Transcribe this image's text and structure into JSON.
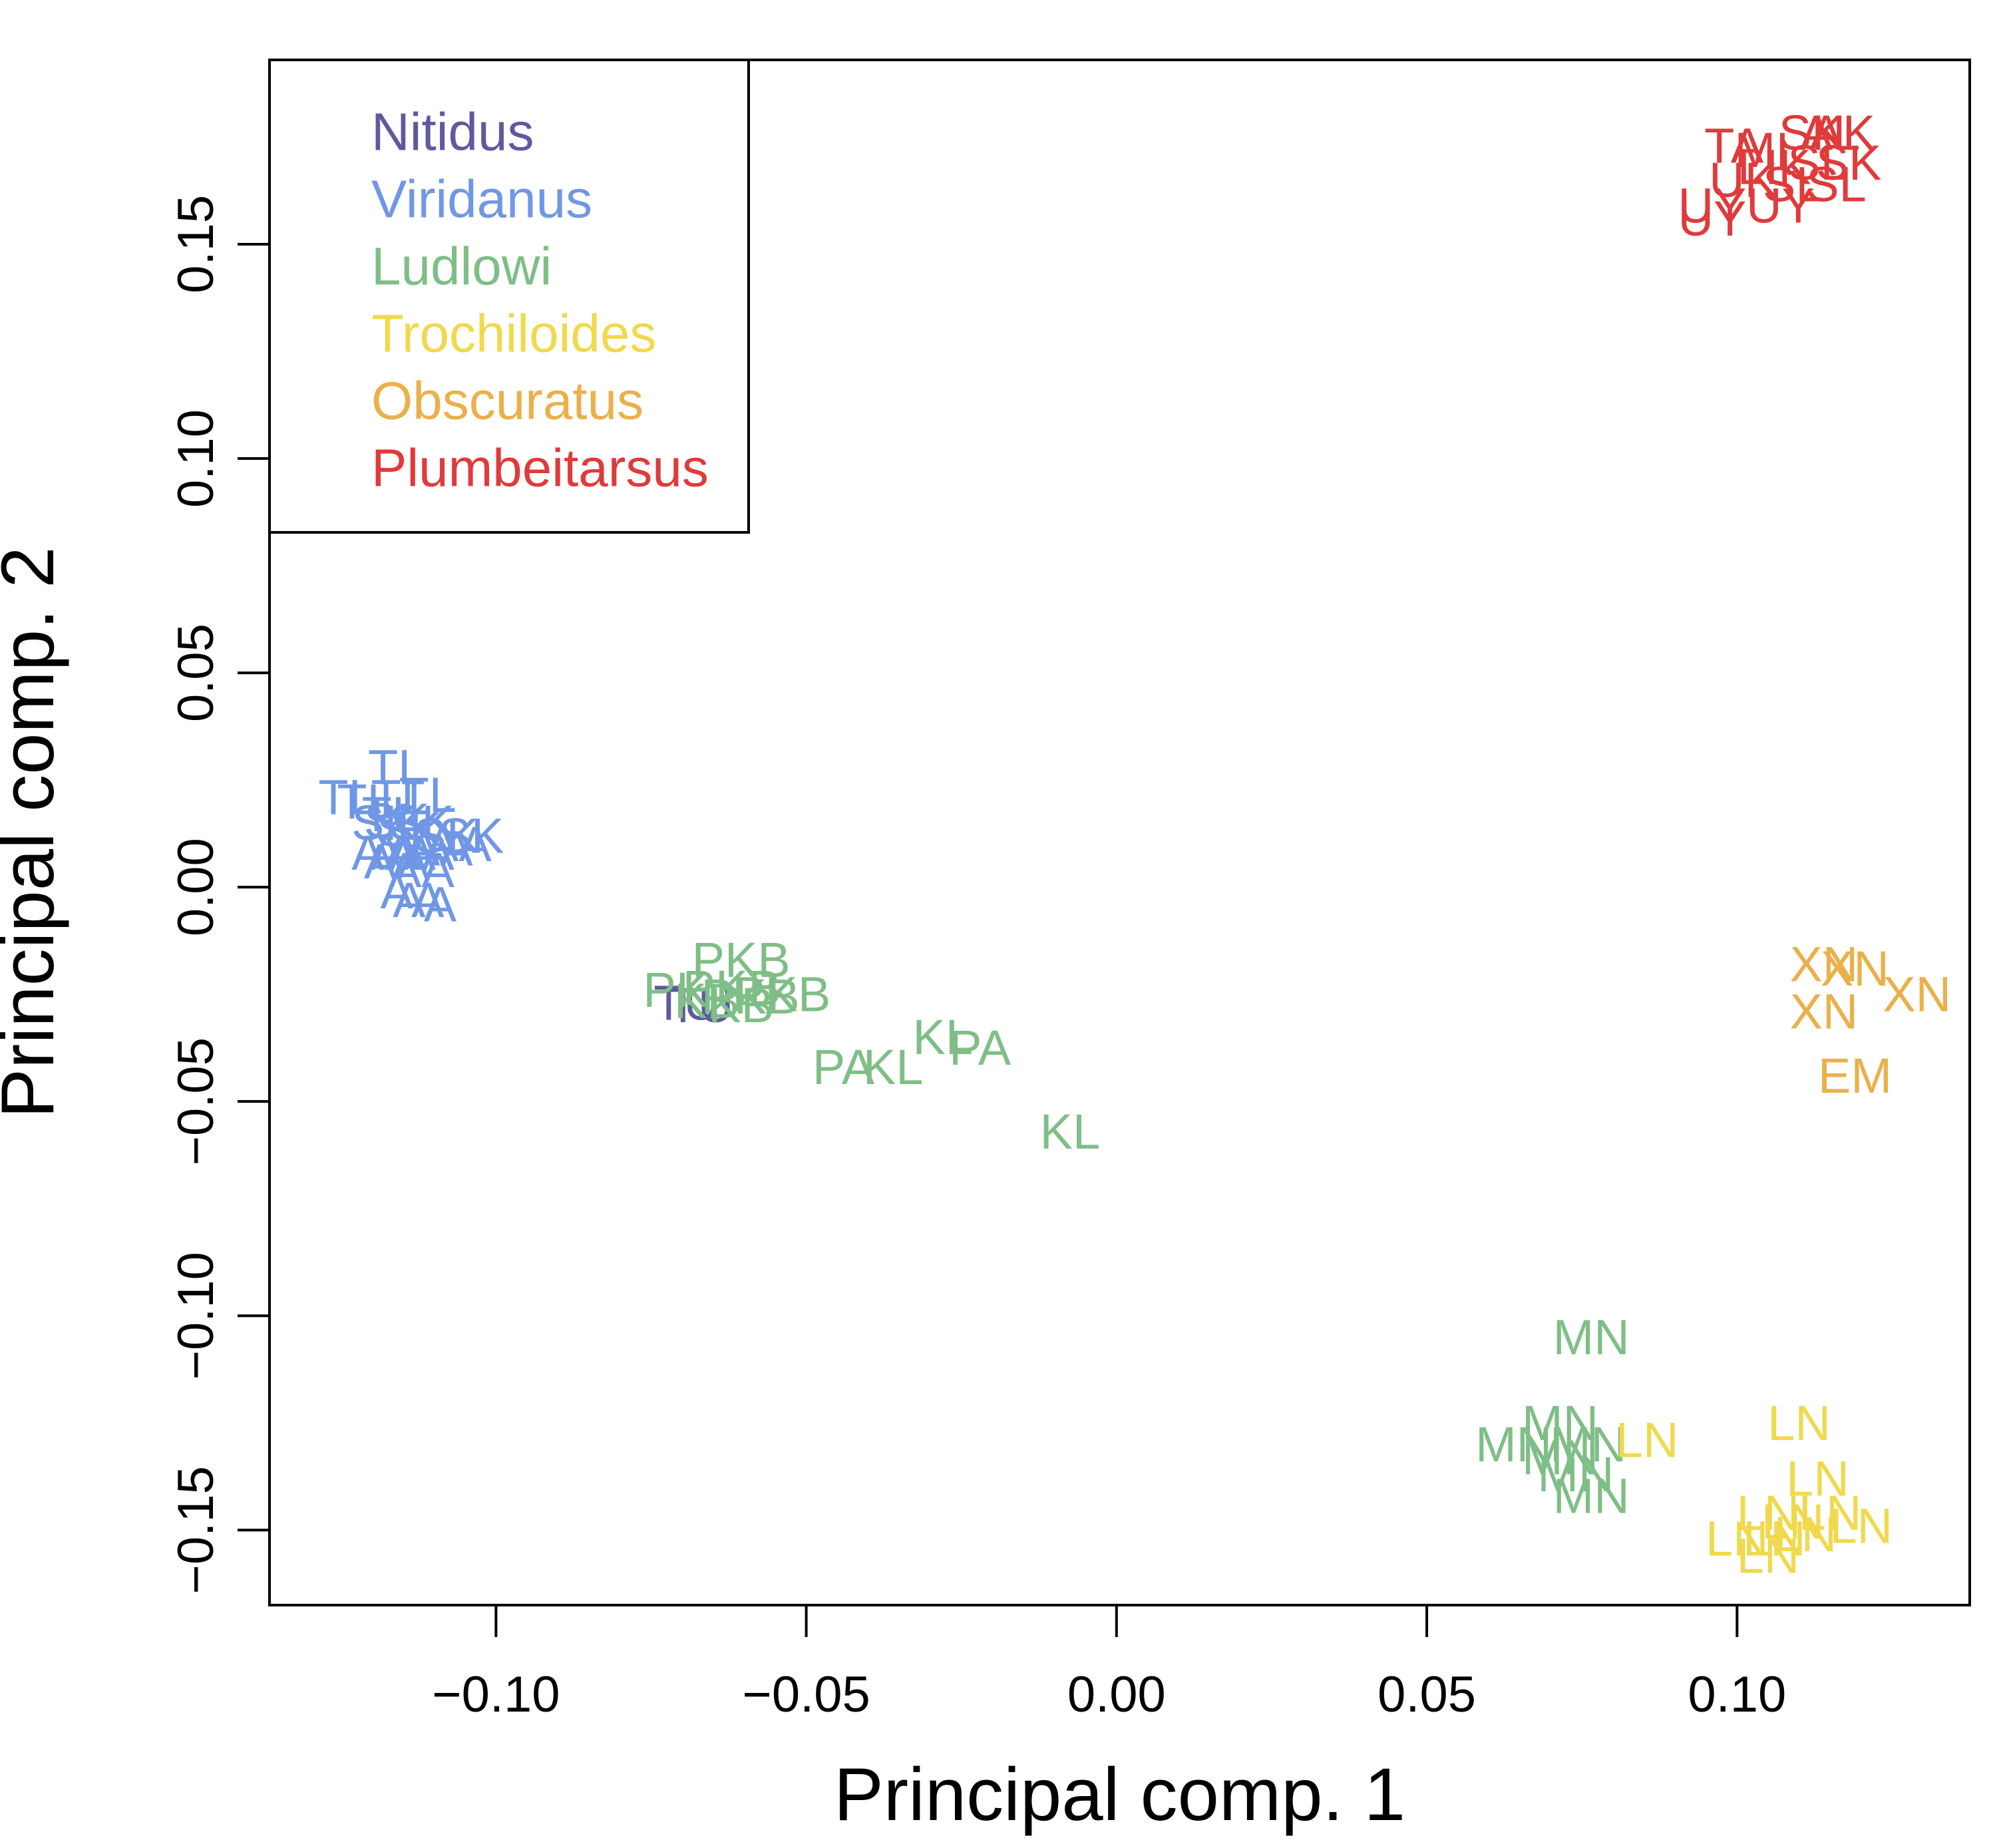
{
  "chart_data": {
    "type": "scatter",
    "title": "",
    "xlabel": "Principal comp. 1",
    "ylabel": "Principal comp. 2",
    "xlim": [
      -0.1365,
      0.1375
    ],
    "ylim": [
      -0.1675,
      0.193
    ],
    "xticks": [
      -0.1,
      -0.05,
      0.0,
      0.05,
      0.1
    ],
    "xtick_labels": [
      "−0.10",
      "−0.05",
      "0.00",
      "0.05",
      "0.10"
    ],
    "yticks": [
      -0.15,
      -0.1,
      -0.05,
      0.0,
      0.05,
      0.1,
      0.15
    ],
    "ytick_labels": [
      "−0.15",
      "−0.10",
      "−0.05",
      "0.00",
      "0.05",
      "0.10",
      "0.15"
    ],
    "grid": false,
    "legend": {
      "position": "top-left",
      "entries": [
        "Nitidus",
        "Viridanus",
        "Ludlowi",
        "Trochiloides",
        "Obscuratus",
        "Plumbeitarsus"
      ]
    },
    "series": [
      {
        "name": "Nitidus",
        "color": "#5e5aa0",
        "points": [
          {
            "x": -0.0693,
            "y": -0.027,
            "label": "TU"
          },
          {
            "x": -0.067,
            "y": -0.0275,
            "label": "TU"
          }
        ]
      },
      {
        "name": "Viridanus",
        "color": "#6f97e6",
        "points": [
          {
            "x": -0.124,
            "y": 0.021,
            "label": "TL"
          },
          {
            "x": -0.121,
            "y": 0.02,
            "label": "TL"
          },
          {
            "x": -0.116,
            "y": 0.028,
            "label": "TL"
          },
          {
            "x": -0.1155,
            "y": 0.021,
            "label": "TL"
          },
          {
            "x": -0.111,
            "y": 0.0215,
            "label": "TL"
          },
          {
            "x": -0.117,
            "y": 0.017,
            "label": "TL"
          },
          {
            "x": -0.118,
            "y": 0.015,
            "label": "SK"
          },
          {
            "x": -0.116,
            "y": 0.0155,
            "label": "SK"
          },
          {
            "x": -0.114,
            "y": 0.0135,
            "label": "SK"
          },
          {
            "x": -0.112,
            "y": 0.015,
            "label": "SK"
          },
          {
            "x": -0.108,
            "y": 0.012,
            "label": "SK"
          },
          {
            "x": -0.104,
            "y": 0.012,
            "label": "SK"
          },
          {
            "x": -0.118,
            "y": 0.008,
            "label": "AA"
          },
          {
            "x": -0.115,
            "y": 0.008,
            "label": "AA"
          },
          {
            "x": -0.112,
            "y": 0.008,
            "label": "AA"
          },
          {
            "x": -0.109,
            "y": 0.009,
            "label": "AA"
          },
          {
            "x": -0.106,
            "y": 0.01,
            "label": "AA"
          },
          {
            "x": -0.116,
            "y": 0.006,
            "label": "AA"
          },
          {
            "x": -0.112,
            "y": 0.004,
            "label": "AA"
          },
          {
            "x": -0.116,
            "y": -0.001,
            "label": "A"
          },
          {
            "x": -0.114,
            "y": -0.003,
            "label": "A"
          },
          {
            "x": -0.111,
            "y": -0.003,
            "label": "A"
          },
          {
            "x": -0.109,
            "y": -0.004,
            "label": "A"
          }
        ]
      },
      {
        "name": "Ludlowi",
        "color": "#7fbe86",
        "points": [
          {
            "x": -0.0605,
            "y": -0.017,
            "label": "PKB"
          },
          {
            "x": -0.054,
            "y": -0.025,
            "label": "PKB"
          },
          {
            "x": -0.059,
            "y": -0.0255,
            "label": "PKB"
          },
          {
            "x": -0.071,
            "y": -0.024,
            "label": "PK"
          },
          {
            "x": -0.062,
            "y": -0.0235,
            "label": "PKB"
          },
          {
            "x": -0.066,
            "y": -0.0265,
            "label": "KB"
          },
          {
            "x": -0.0605,
            "y": -0.0275,
            "label": "KB"
          },
          {
            "x": -0.044,
            "y": -0.042,
            "label": "PA"
          },
          {
            "x": -0.036,
            "y": -0.042,
            "label": "KL"
          },
          {
            "x": -0.028,
            "y": -0.035,
            "label": "KL"
          },
          {
            "x": -0.022,
            "y": -0.0375,
            "label": "PA"
          },
          {
            "x": -0.0075,
            "y": -0.057,
            "label": "KL"
          },
          {
            "x": 0.0765,
            "y": -0.105,
            "label": "MN"
          },
          {
            "x": 0.0715,
            "y": -0.125,
            "label": "MN"
          },
          {
            "x": 0.064,
            "y": -0.13,
            "label": "MN"
          },
          {
            "x": 0.0715,
            "y": -0.133,
            "label": "MN"
          },
          {
            "x": 0.076,
            "y": -0.13,
            "label": "MN"
          },
          {
            "x": 0.074,
            "y": -0.137,
            "label": "MN"
          },
          {
            "x": 0.0765,
            "y": -0.142,
            "label": "MN"
          }
        ]
      },
      {
        "name": "Trochiloides",
        "color": "#f0d94d",
        "points": [
          {
            "x": 0.0855,
            "y": -0.129,
            "label": "LN"
          },
          {
            "x": 0.11,
            "y": -0.125,
            "label": "LN"
          },
          {
            "x": 0.113,
            "y": -0.138,
            "label": "LN"
          },
          {
            "x": 0.105,
            "y": -0.146,
            "label": "LN"
          },
          {
            "x": 0.109,
            "y": -0.148,
            "label": "LN"
          },
          {
            "x": 0.115,
            "y": -0.146,
            "label": "LN"
          },
          {
            "x": 0.12,
            "y": -0.149,
            "label": "LN"
          },
          {
            "x": 0.1,
            "y": -0.152,
            "label": "LN"
          },
          {
            "x": 0.106,
            "y": -0.152,
            "label": "LN"
          },
          {
            "x": 0.111,
            "y": -0.151,
            "label": "LN"
          },
          {
            "x": 0.105,
            "y": -0.156,
            "label": "LN"
          }
        ]
      },
      {
        "name": "Obscuratus",
        "color": "#ebb04a",
        "points": [
          {
            "x": 0.114,
            "y": -0.018,
            "label": "XN"
          },
          {
            "x": 0.119,
            "y": -0.019,
            "label": "XN"
          },
          {
            "x": 0.129,
            "y": -0.025,
            "label": "XN"
          },
          {
            "x": 0.114,
            "y": -0.029,
            "label": "XN"
          },
          {
            "x": 0.119,
            "y": -0.044,
            "label": "EM"
          }
        ]
      },
      {
        "name": "Plumbeitarsus",
        "color": "#e03a3a",
        "points": [
          {
            "x": 0.112,
            "y": 0.176,
            "label": "SK"
          },
          {
            "x": 0.115,
            "y": 0.176,
            "label": "AL"
          },
          {
            "x": 0.117,
            "y": 0.176,
            "label": "AK"
          },
          {
            "x": 0.0995,
            "y": 0.173,
            "label": "TA"
          },
          {
            "x": 0.104,
            "y": 0.172,
            "label": "MI"
          },
          {
            "x": 0.113,
            "y": 0.169,
            "label": "SL"
          },
          {
            "x": 0.118,
            "y": 0.169,
            "label": "SK"
          },
          {
            "x": 0.106,
            "y": 0.168,
            "label": "LIK"
          },
          {
            "x": 0.101,
            "y": 0.165,
            "label": "UK"
          },
          {
            "x": 0.109,
            "y": 0.164,
            "label": "SL"
          },
          {
            "x": 0.116,
            "y": 0.164,
            "label": "SL"
          },
          {
            "x": 0.096,
            "y": 0.159,
            "label": "UY"
          },
          {
            "x": 0.107,
            "y": 0.159,
            "label": "UY"
          },
          {
            "x": 0.096,
            "y": 0.156,
            "label": "UY"
          }
        ]
      }
    ]
  }
}
